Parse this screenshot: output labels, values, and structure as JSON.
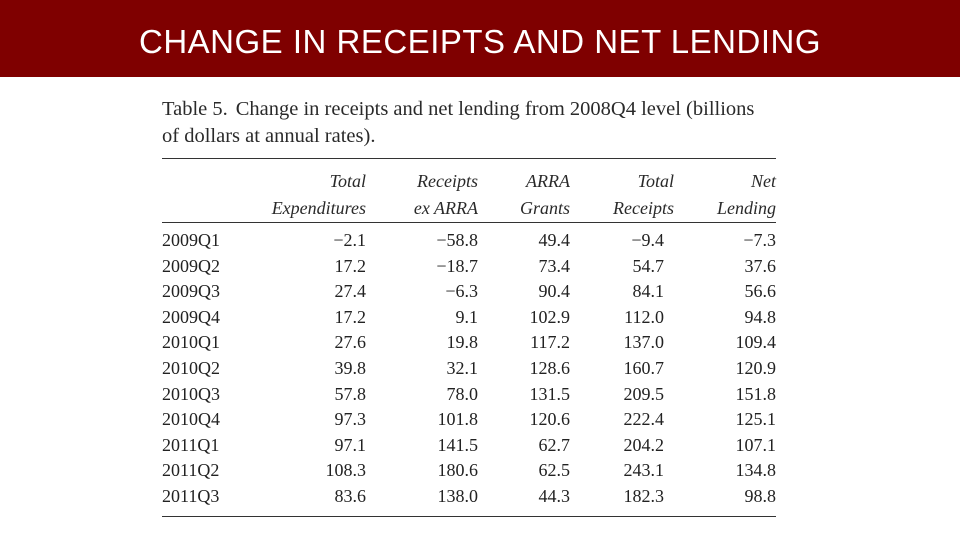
{
  "slide": {
    "title": "CHANGE IN RECEIPTS AND NET LENDING"
  },
  "table": {
    "label": "Table 5.",
    "caption_line1": "Change in receipts and net lending from 2008Q4 level (billions",
    "caption_line2": "of dollars at annual rates).",
    "headers": [
      {
        "line1": "Total",
        "line2": "Expenditures"
      },
      {
        "line1": "Receipts",
        "line2": "ex ARRA"
      },
      {
        "line1": "ARRA",
        "line2": "Grants"
      },
      {
        "line1": "Total",
        "line2": "Receipts"
      },
      {
        "line1": "Net",
        "line2": "Lending"
      }
    ],
    "rows": [
      [
        "2009Q1",
        "−2.1",
        "−58.8",
        "49.4",
        "−9.4",
        "−7.3"
      ],
      [
        "2009Q2",
        "17.2",
        "−18.7",
        "73.4",
        "54.7",
        "37.6"
      ],
      [
        "2009Q3",
        "27.4",
        "−6.3",
        "90.4",
        "84.1",
        "56.6"
      ],
      [
        "2009Q4",
        "17.2",
        "9.1",
        "102.9",
        "112.0",
        "94.8"
      ],
      [
        "2010Q1",
        "27.6",
        "19.8",
        "117.2",
        "137.0",
        "109.4"
      ],
      [
        "2010Q2",
        "39.8",
        "32.1",
        "128.6",
        "160.7",
        "120.9"
      ],
      [
        "2010Q3",
        "57.8",
        "78.0",
        "131.5",
        "209.5",
        "151.8"
      ],
      [
        "2010Q4",
        "97.3",
        "101.8",
        "120.6",
        "222.4",
        "125.1"
      ],
      [
        "2011Q1",
        "97.1",
        "141.5",
        "62.7",
        "204.2",
        "107.1"
      ],
      [
        "2011Q2",
        "108.3",
        "180.6",
        "62.5",
        "243.1",
        "134.8"
      ],
      [
        "2011Q3",
        "83.6",
        "138.0",
        "44.3",
        "182.3",
        "98.8"
      ]
    ]
  }
}
